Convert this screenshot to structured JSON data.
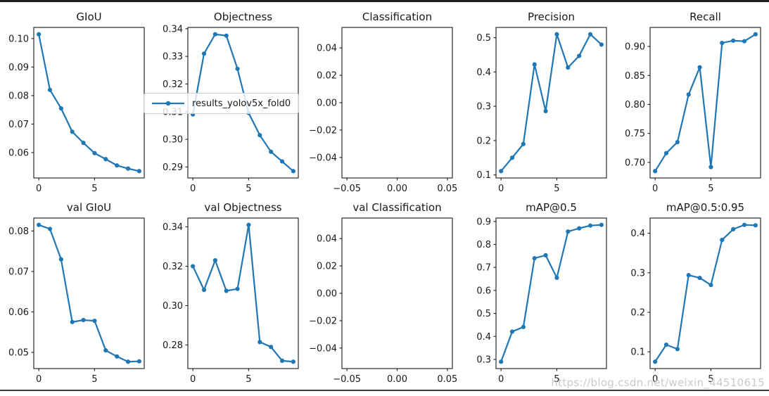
{
  "legend": {
    "label": "results_yolov5x_fold0"
  },
  "watermark": "https://blog.csdn.net/weixin_44510615",
  "style": {
    "line_color": "#1f77b4",
    "spine_color": "#2b2b2b",
    "tick_font_px": 13
  },
  "chart_data": [
    {
      "type": "line",
      "title": "GIoU",
      "x": [
        0,
        1,
        2,
        3,
        4,
        5,
        6,
        7,
        8,
        9
      ],
      "y": [
        0.1015,
        0.082,
        0.0755,
        0.0673,
        0.0634,
        0.0598,
        0.0577,
        0.0555,
        0.0544,
        0.0535
      ],
      "xticks": [
        0,
        5
      ],
      "xtick_labels": [
        "0",
        "5"
      ],
      "yticks": [
        0.1,
        0.09,
        0.08,
        0.07,
        0.06
      ],
      "ytick_labels": [
        "0.10",
        "0.09",
        "0.08",
        "0.07",
        "0.06"
      ]
    },
    {
      "type": "line",
      "title": "Objectness",
      "x": [
        0,
        1,
        2,
        3,
        4,
        5,
        6,
        7,
        8,
        9
      ],
      "y": [
        0.309,
        0.331,
        0.338,
        0.3375,
        0.3255,
        0.3095,
        0.3015,
        0.2955,
        0.292,
        0.2885
      ],
      "xticks": [
        0,
        5
      ],
      "xtick_labels": [
        "0",
        "5"
      ],
      "yticks": [
        0.34,
        0.33,
        0.32,
        0.31,
        0.3,
        0.29
      ],
      "ytick_labels": [
        "0.34",
        "0.33",
        "0.32",
        "0.31",
        "0.30",
        "0.29"
      ]
    },
    {
      "type": "line",
      "title": "Classification",
      "x": [],
      "y": [],
      "xlim": [
        -0.055,
        0.055
      ],
      "ylim": [
        -0.055,
        0.055
      ],
      "xticks": [
        -0.05,
        0.0,
        0.05
      ],
      "xtick_labels": [
        "−0.05",
        "0.00",
        "0.05"
      ],
      "yticks": [
        0.04,
        0.02,
        0.0,
        -0.02,
        -0.04
      ],
      "ytick_labels": [
        "0.04",
        "0.02",
        "0.00",
        "−0.02",
        "−0.04"
      ]
    },
    {
      "type": "line",
      "title": "Precision",
      "x": [
        0,
        1,
        2,
        3,
        4,
        5,
        6,
        7,
        8,
        9
      ],
      "y": [
        0.111,
        0.15,
        0.19,
        0.422,
        0.286,
        0.51,
        0.413,
        0.447,
        0.51,
        0.48
      ],
      "xticks": [
        0,
        5
      ],
      "xtick_labels": [
        "0",
        "5"
      ],
      "yticks": [
        0.5,
        0.4,
        0.3,
        0.2,
        0.1
      ],
      "ytick_labels": [
        "0.5",
        "0.4",
        "0.3",
        "0.2",
        "0.1"
      ]
    },
    {
      "type": "line",
      "title": "Recall",
      "x": [
        0,
        1,
        2,
        3,
        4,
        5,
        6,
        7,
        8,
        9
      ],
      "y": [
        0.685,
        0.716,
        0.735,
        0.817,
        0.864,
        0.692,
        0.906,
        0.91,
        0.909,
        0.921
      ],
      "xticks": [
        0,
        5
      ],
      "xtick_labels": [
        "0",
        "5"
      ],
      "yticks": [
        0.9,
        0.85,
        0.8,
        0.75,
        0.7
      ],
      "ytick_labels": [
        "0.90",
        "0.85",
        "0.80",
        "0.75",
        "0.70"
      ]
    },
    {
      "type": "line",
      "title": "val GIoU",
      "x": [
        0,
        1,
        2,
        3,
        4,
        5,
        6,
        7,
        8,
        9
      ],
      "y": [
        0.0815,
        0.0805,
        0.073,
        0.0575,
        0.058,
        0.0578,
        0.0505,
        0.049,
        0.0477,
        0.0478
      ],
      "xticks": [
        0,
        5
      ],
      "xtick_labels": [
        "0",
        "5"
      ],
      "yticks": [
        0.08,
        0.07,
        0.06,
        0.05
      ],
      "ytick_labels": [
        "0.08",
        "0.07",
        "0.06",
        "0.05"
      ]
    },
    {
      "type": "line",
      "title": "val Objectness",
      "x": [
        0,
        1,
        2,
        3,
        4,
        5,
        6,
        7,
        8,
        9
      ],
      "y": [
        0.32,
        0.308,
        0.323,
        0.3075,
        0.3085,
        0.341,
        0.2815,
        0.279,
        0.272,
        0.2715
      ],
      "xticks": [
        0,
        5
      ],
      "xtick_labels": [
        "0",
        "5"
      ],
      "yticks": [
        0.34,
        0.32,
        0.3,
        0.28
      ],
      "ytick_labels": [
        "0.34",
        "0.32",
        "0.30",
        "0.28"
      ]
    },
    {
      "type": "line",
      "title": "val Classification",
      "x": [],
      "y": [],
      "xlim": [
        -0.055,
        0.055
      ],
      "ylim": [
        -0.055,
        0.055
      ],
      "xticks": [
        -0.05,
        0.0,
        0.05
      ],
      "xtick_labels": [
        "−0.05",
        "0.00",
        "0.05"
      ],
      "yticks": [
        0.04,
        0.02,
        0.0,
        -0.02,
        -0.04
      ],
      "ytick_labels": [
        "0.04",
        "0.02",
        "0.00",
        "−0.02",
        "−0.04"
      ]
    },
    {
      "type": "line",
      "title": "mAP@0.5",
      "x": [
        0,
        1,
        2,
        3,
        4,
        5,
        6,
        7,
        8,
        9
      ],
      "y": [
        0.29,
        0.421,
        0.441,
        0.74,
        0.753,
        0.655,
        0.856,
        0.87,
        0.882,
        0.885
      ],
      "xticks": [
        0,
        5
      ],
      "xtick_labels": [
        "0",
        "5"
      ],
      "yticks": [
        0.9,
        0.8,
        0.7,
        0.6,
        0.5,
        0.4,
        0.3
      ],
      "ytick_labels": [
        "0.9",
        "0.8",
        "0.7",
        "0.6",
        "0.5",
        "0.4",
        "0.3"
      ]
    },
    {
      "type": "line",
      "title": "mAP@0.5:0.95",
      "x": [
        0,
        1,
        2,
        3,
        4,
        5,
        6,
        7,
        8,
        9
      ],
      "y": [
        0.075,
        0.118,
        0.107,
        0.294,
        0.287,
        0.269,
        0.383,
        0.41,
        0.421,
        0.42
      ],
      "xticks": [
        0,
        5
      ],
      "xtick_labels": [
        "0",
        "5"
      ],
      "yticks": [
        0.4,
        0.3,
        0.2,
        0.1
      ],
      "ytick_labels": [
        "0.4",
        "0.3",
        "0.2",
        "0.1"
      ]
    }
  ]
}
